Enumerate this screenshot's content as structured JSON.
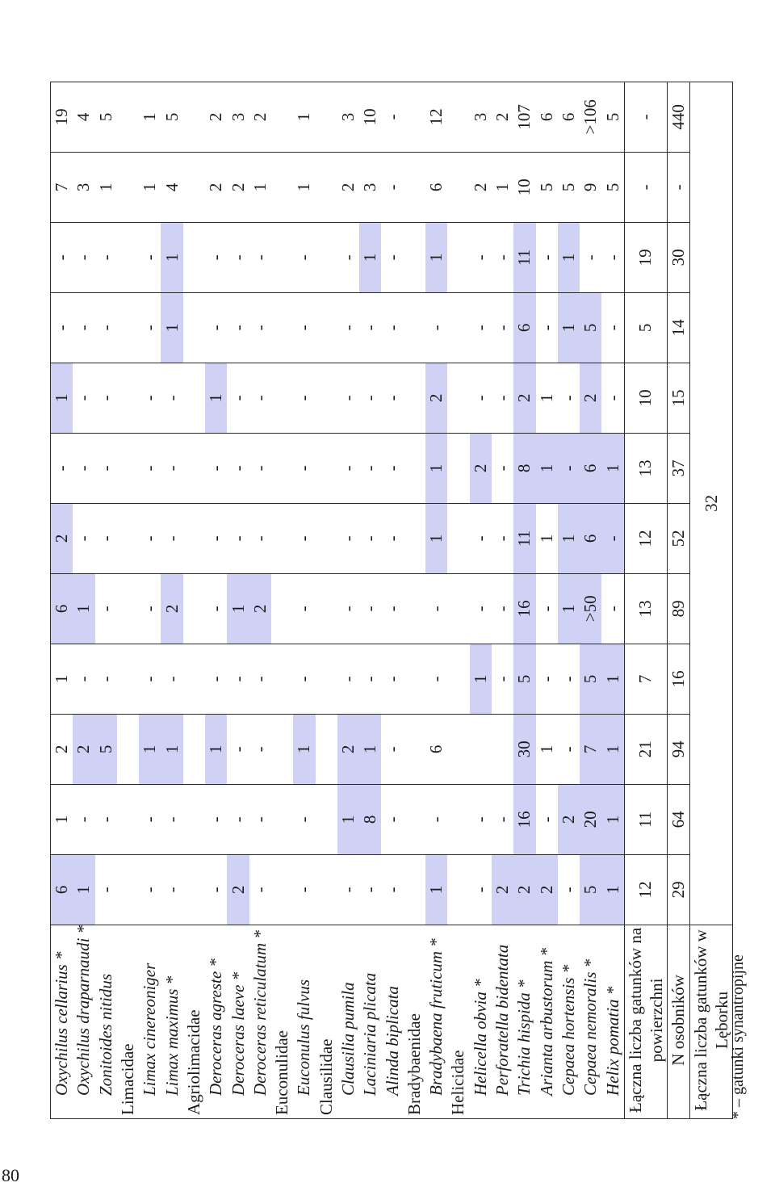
{
  "page_number": "80",
  "footnote": "* – gatunki synantropijne",
  "highlight_color": "#cfd2f5",
  "rows": [
    {
      "label": "Oxychilus cellarius *",
      "kind": "species",
      "vals": [
        "6",
        "1",
        "2",
        "1",
        "6",
        "2",
        "-",
        "1",
        "-",
        "-",
        "7",
        "19"
      ],
      "hl": [
        1,
        0,
        0,
        0,
        1,
        1,
        0,
        1,
        0,
        0,
        0,
        0
      ]
    },
    {
      "label": "Oxychilus draparnaudi *",
      "kind": "species",
      "vals": [
        "1",
        "-",
        "2",
        "-",
        "1",
        "-",
        "-",
        "-",
        "-",
        "-",
        "3",
        "4"
      ],
      "hl": [
        1,
        0,
        1,
        0,
        1,
        0,
        0,
        0,
        0,
        0,
        0,
        0
      ]
    },
    {
      "label": "Zonitoides nitidus",
      "kind": "species",
      "vals": [
        "-",
        "-",
        "5",
        "-",
        "-",
        "-",
        "-",
        "-",
        "-",
        "-",
        "1",
        "5"
      ],
      "hl": [
        0,
        0,
        1,
        0,
        0,
        0,
        0,
        0,
        0,
        0,
        0,
        0
      ]
    },
    {
      "label": "Limacidae",
      "kind": "family",
      "vals": [
        "",
        "",
        "",
        "",
        "",
        "",
        "",
        "",
        "",
        "",
        "",
        ""
      ],
      "hl": [
        0,
        0,
        0,
        0,
        0,
        0,
        0,
        0,
        0,
        0,
        0,
        0
      ]
    },
    {
      "label": "Limax cinereoniger",
      "kind": "species",
      "vals": [
        "-",
        "-",
        "1",
        "-",
        "-",
        "-",
        "-",
        "-",
        "-",
        "-",
        "1",
        "1"
      ],
      "hl": [
        0,
        0,
        1,
        0,
        0,
        0,
        0,
        0,
        0,
        0,
        0,
        0
      ]
    },
    {
      "label": "Limax maximus *",
      "kind": "species",
      "vals": [
        "-",
        "-",
        "1",
        "-",
        "2",
        "-",
        "-",
        "-",
        "1",
        "1",
        "4",
        "5"
      ],
      "hl": [
        0,
        0,
        1,
        0,
        1,
        0,
        0,
        0,
        1,
        1,
        0,
        0
      ]
    },
    {
      "label": "Agriolimacidae",
      "kind": "family",
      "vals": [
        "",
        "",
        "",
        "",
        "",
        "",
        "",
        "",
        "",
        "",
        "",
        ""
      ],
      "hl": [
        0,
        0,
        0,
        0,
        0,
        0,
        0,
        0,
        0,
        0,
        0,
        0
      ]
    },
    {
      "label": "Deroceras agreste *",
      "kind": "species",
      "vals": [
        "-",
        "-",
        "1",
        "-",
        "-",
        "-",
        "-",
        "1",
        "-",
        "-",
        "2",
        "2"
      ],
      "hl": [
        0,
        0,
        1,
        0,
        0,
        0,
        0,
        1,
        0,
        0,
        0,
        0
      ]
    },
    {
      "label": "Deroceras laeve *",
      "kind": "species",
      "vals": [
        "2",
        "-",
        "-",
        "-",
        "1",
        "-",
        "-",
        "-",
        "-",
        "-",
        "2",
        "3"
      ],
      "hl": [
        1,
        0,
        0,
        0,
        1,
        0,
        0,
        0,
        0,
        0,
        0,
        0
      ]
    },
    {
      "label": "Deroceras reticulatum *",
      "kind": "species",
      "vals": [
        "-",
        "-",
        "-",
        "-",
        "2",
        "-",
        "-",
        "-",
        "-",
        "-",
        "1",
        "2"
      ],
      "hl": [
        0,
        0,
        0,
        0,
        1,
        0,
        0,
        0,
        0,
        0,
        0,
        0
      ]
    },
    {
      "label": "Euconulidae",
      "kind": "family",
      "vals": [
        "",
        "",
        "",
        "",
        "",
        "",
        "",
        "",
        "",
        "",
        "",
        ""
      ],
      "hl": [
        0,
        0,
        0,
        0,
        0,
        0,
        0,
        0,
        0,
        0,
        0,
        0
      ]
    },
    {
      "label": "Euconulus fulvus",
      "kind": "species",
      "vals": [
        "-",
        "-",
        "1",
        "-",
        "-",
        "-",
        "-",
        "-",
        "-",
        "-",
        "1",
        "1"
      ],
      "hl": [
        0,
        0,
        1,
        0,
        0,
        0,
        0,
        0,
        0,
        0,
        0,
        0
      ]
    },
    {
      "label": "Clausilidae",
      "kind": "family",
      "vals": [
        "",
        "",
        "",
        "",
        "",
        "",
        "",
        "",
        "",
        "",
        "",
        ""
      ],
      "hl": [
        0,
        0,
        0,
        0,
        0,
        0,
        0,
        0,
        0,
        0,
        0,
        0
      ]
    },
    {
      "label": "Clausilia pumila",
      "kind": "species",
      "vals": [
        "-",
        "1",
        "2",
        "-",
        "-",
        "-",
        "-",
        "-",
        "-",
        "-",
        "2",
        "3"
      ],
      "hl": [
        0,
        1,
        1,
        0,
        0,
        0,
        0,
        0,
        0,
        0,
        0,
        0
      ]
    },
    {
      "label": "Laciniaria plicata",
      "kind": "species",
      "vals": [
        "-",
        "8",
        "1",
        "-",
        "-",
        "-",
        "-",
        "-",
        "-",
        "1",
        "3",
        "10"
      ],
      "hl": [
        0,
        1,
        1,
        0,
        0,
        0,
        0,
        0,
        0,
        1,
        0,
        0
      ]
    },
    {
      "label": "Alinda biplicata",
      "kind": "species",
      "vals": [
        "-",
        "-",
        "-",
        "-",
        "-",
        "-",
        "-",
        "-",
        "-",
        "-",
        "-",
        "-"
      ],
      "hl": [
        0,
        0,
        0,
        0,
        0,
        0,
        0,
        0,
        0,
        0,
        0,
        0
      ]
    },
    {
      "label": "Bradybaenidae",
      "kind": "family",
      "vals": [
        "",
        "",
        "",
        "",
        "",
        "",
        "",
        "",
        "",
        "",
        "",
        ""
      ],
      "hl": [
        0,
        0,
        0,
        0,
        0,
        0,
        0,
        0,
        0,
        0,
        0,
        0
      ]
    },
    {
      "label": "Bradybaena fruticum *",
      "kind": "species",
      "vals": [
        "1",
        "-",
        "6",
        "-",
        "-",
        "1",
        "1",
        "2",
        "-",
        "1",
        "6",
        "12"
      ],
      "hl": [
        1,
        0,
        0,
        0,
        0,
        1,
        1,
        1,
        0,
        1,
        0,
        0
      ]
    },
    {
      "label": "Helicidae",
      "kind": "family",
      "vals": [
        "",
        "",
        "",
        "",
        "",
        "",
        "",
        "",
        "",
        "",
        "",
        ""
      ],
      "hl": [
        0,
        0,
        0,
        0,
        0,
        0,
        0,
        0,
        0,
        0,
        0,
        0
      ]
    },
    {
      "label": "Helicella obvia *",
      "kind": "species",
      "vals": [
        "-",
        "-",
        "",
        "1",
        "-",
        "-",
        "2",
        "-",
        "-",
        "-",
        "2",
        "3"
      ],
      "hl": [
        0,
        0,
        0,
        1,
        0,
        0,
        1,
        0,
        0,
        0,
        0,
        0
      ]
    },
    {
      "label": "Perforatella bidentata",
      "kind": "species",
      "vals": [
        "2",
        "-",
        "",
        "-",
        "-",
        "-",
        "-",
        "-",
        "-",
        "-",
        "1",
        "2"
      ],
      "hl": [
        1,
        0,
        0,
        0,
        0,
        0,
        0,
        0,
        0,
        0,
        0,
        0
      ]
    },
    {
      "label": "Trichia hispida *",
      "kind": "species",
      "vals": [
        "2",
        "16",
        "30",
        "5",
        "16",
        "11",
        "8",
        "2",
        "6",
        "11",
        "10",
        "107"
      ],
      "hl": [
        1,
        1,
        1,
        1,
        1,
        1,
        1,
        1,
        1,
        1,
        0,
        0
      ]
    },
    {
      "label": "Arianta arbustorum *",
      "kind": "species",
      "vals": [
        "2",
        "-",
        "1",
        "-",
        "-",
        "1",
        "1",
        "1",
        "-",
        "-",
        "5",
        "6"
      ],
      "hl": [
        1,
        0,
        0,
        0,
        0,
        0,
        1,
        0,
        0,
        0,
        0,
        0
      ]
    },
    {
      "label": "Cepaea hortensis *",
      "kind": "species",
      "vals": [
        "-",
        "2",
        "-",
        "-",
        "1",
        "1",
        "-",
        "-",
        "1",
        "1",
        "5",
        "6"
      ],
      "hl": [
        0,
        1,
        0,
        0,
        1,
        1,
        1,
        0,
        1,
        1,
        0,
        0
      ]
    },
    {
      "label": "Cepaea nemoralis *",
      "kind": "species",
      "vals": [
        "5",
        "20",
        "7",
        "5",
        ">50",
        "6",
        "6",
        "2",
        "5",
        "-",
        "9",
        ">106"
      ],
      "hl": [
        1,
        1,
        1,
        1,
        1,
        1,
        1,
        1,
        1,
        0,
        0,
        0
      ]
    },
    {
      "label": "Helix pomatia *",
      "kind": "species",
      "vals": [
        "1",
        "1",
        "1",
        "1",
        "-",
        "-",
        "1",
        "-",
        "-",
        "-",
        "5",
        "5"
      ],
      "hl": [
        1,
        1,
        1,
        1,
        0,
        1,
        1,
        0,
        0,
        0,
        0,
        0
      ]
    }
  ],
  "summary": {
    "species_per_site": {
      "label": "Łączna liczba gatunków na powierzchni",
      "vals": [
        "12",
        "11",
        "21",
        "7",
        "13",
        "12",
        "13",
        "10",
        "5",
        "19",
        "-",
        "-"
      ]
    },
    "n_individuals": {
      "label": "N osobników",
      "vals": [
        "29",
        "64",
        "94",
        "16",
        "89",
        "52",
        "37",
        "15",
        "14",
        "30",
        "-",
        "440"
      ]
    },
    "total_species": {
      "label": "Łączna liczba gatunków w Lęborku",
      "value": "32"
    }
  }
}
